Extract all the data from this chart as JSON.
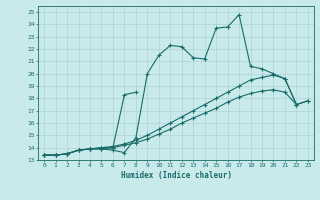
{
  "xlabel": "Humidex (Indice chaleur)",
  "xlim": [
    -0.5,
    23.5
  ],
  "ylim": [
    13,
    25.5
  ],
  "xticks": [
    0,
    1,
    2,
    3,
    4,
    5,
    6,
    7,
    8,
    9,
    10,
    11,
    12,
    13,
    14,
    15,
    16,
    17,
    18,
    19,
    20,
    21,
    22,
    23
  ],
  "yticks": [
    13,
    14,
    15,
    16,
    17,
    18,
    19,
    20,
    21,
    22,
    23,
    24,
    25
  ],
  "bg_color": "#c9eaea",
  "grid_color": "#aed4d4",
  "line_color": "#1a6b6b",
  "line1_x": [
    0,
    1,
    2,
    3,
    4,
    5,
    6,
    7,
    8,
    9,
    10,
    11,
    12,
    13,
    14,
    15,
    16,
    17,
    18,
    19,
    20,
    21,
    22
  ],
  "line1_y": [
    13.4,
    13.4,
    13.5,
    13.8,
    13.9,
    13.9,
    13.8,
    13.6,
    14.8,
    20.0,
    21.5,
    22.3,
    22.2,
    21.3,
    21.2,
    23.7,
    23.8,
    24.8,
    20.6,
    20.4,
    20.0,
    19.6,
    17.5
  ],
  "line2_x": [
    0,
    1,
    2,
    3,
    4,
    5,
    6,
    7,
    8
  ],
  "line2_y": [
    13.4,
    13.4,
    13.5,
    13.8,
    13.9,
    14.0,
    14.0,
    18.3,
    18.5
  ],
  "line3_x": [
    0,
    1,
    2,
    3,
    4,
    5,
    6,
    7,
    8,
    9,
    10,
    11,
    12,
    13,
    14,
    15,
    16,
    17,
    18,
    19,
    20,
    21,
    22,
    23
  ],
  "line3_y": [
    13.4,
    13.4,
    13.5,
    13.8,
    13.9,
    14.0,
    14.1,
    14.3,
    14.6,
    15.0,
    15.5,
    16.0,
    16.5,
    17.0,
    17.5,
    18.0,
    18.5,
    19.0,
    19.5,
    19.7,
    19.9,
    19.6,
    17.5,
    17.8
  ],
  "line4_x": [
    0,
    1,
    2,
    3,
    4,
    5,
    6,
    7,
    8,
    9,
    10,
    11,
    12,
    13,
    14,
    15,
    16,
    17,
    18,
    19,
    20,
    21,
    22,
    23
  ],
  "line4_y": [
    13.4,
    13.4,
    13.5,
    13.8,
    13.9,
    13.9,
    14.0,
    14.2,
    14.4,
    14.7,
    15.1,
    15.5,
    16.0,
    16.4,
    16.8,
    17.2,
    17.7,
    18.1,
    18.4,
    18.6,
    18.7,
    18.5,
    17.5,
    17.8
  ]
}
